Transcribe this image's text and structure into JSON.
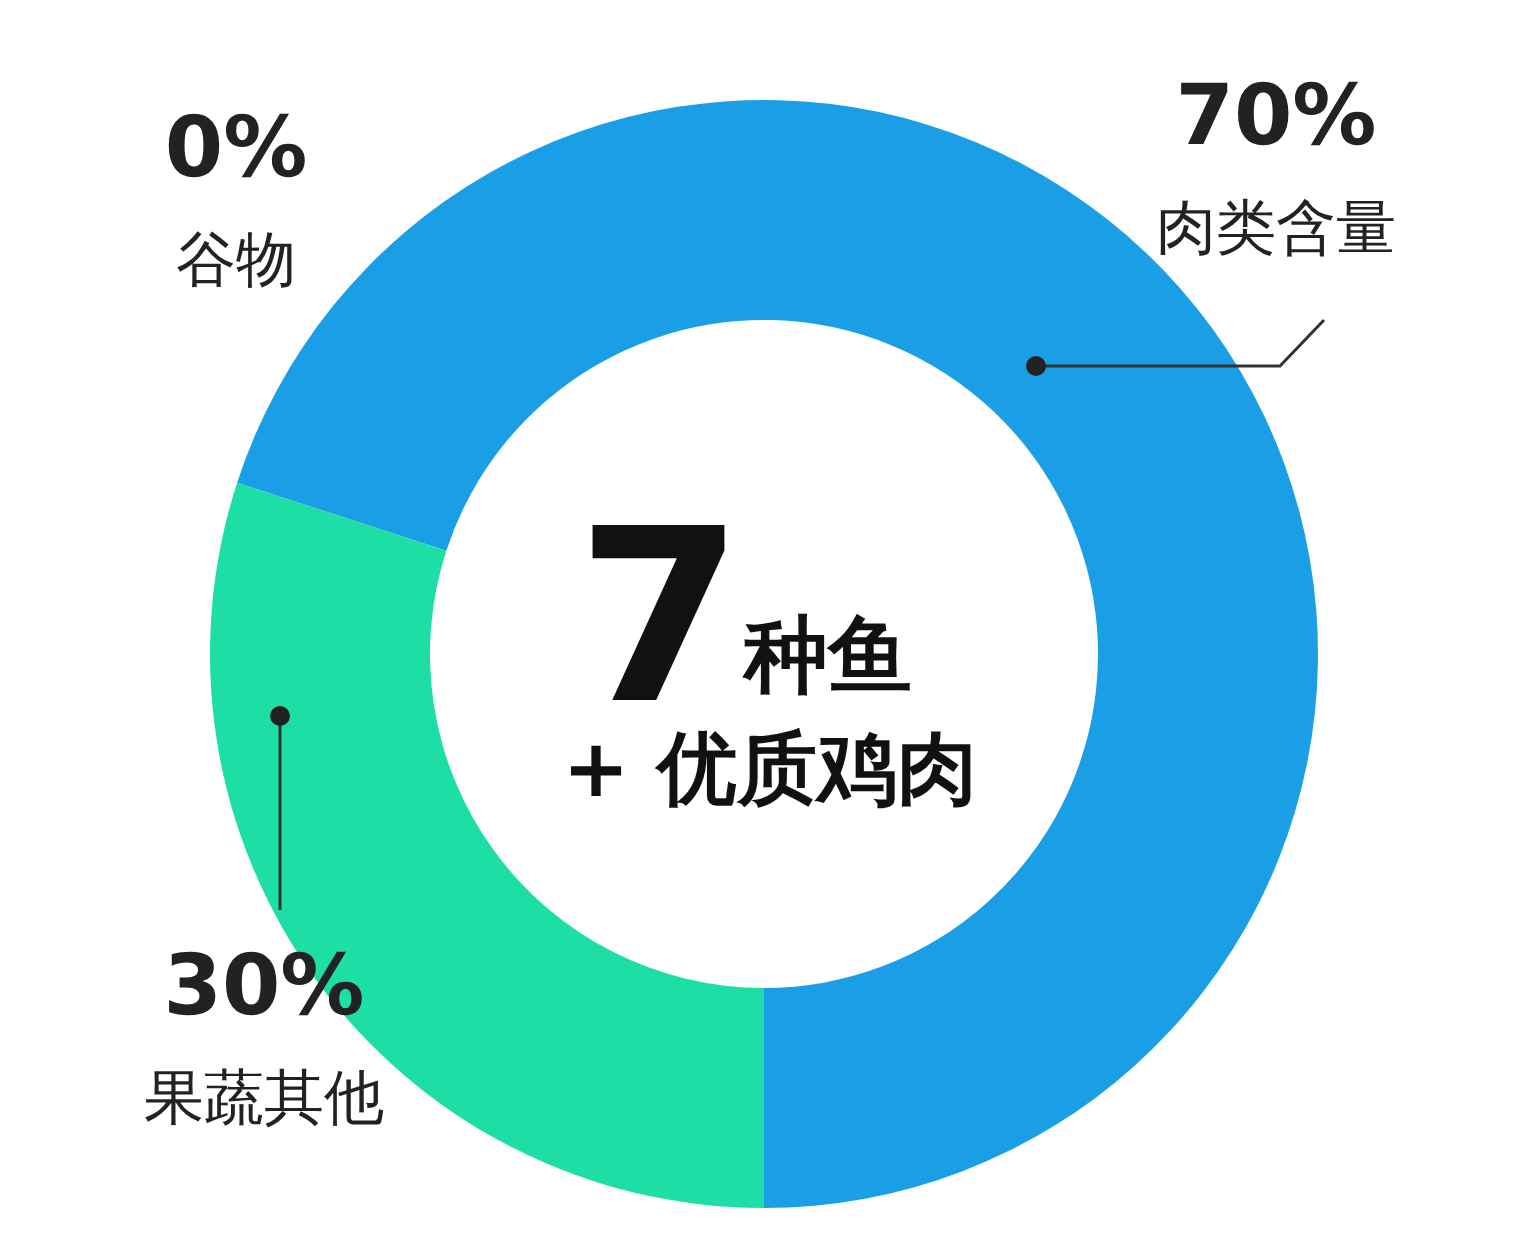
{
  "chart_data": {
    "type": "donut",
    "categories": [
      "肉类含量",
      "果蔬其他",
      "谷物"
    ],
    "values": [
      70,
      30,
      0
    ],
    "colors": [
      "#1a9fe6",
      "#1ddfa6",
      null
    ],
    "value_labels": [
      "70%",
      "30%",
      "0%"
    ],
    "annotations": [
      "7",
      "种鱼",
      "+ 优质鸡肉"
    ]
  }
}
